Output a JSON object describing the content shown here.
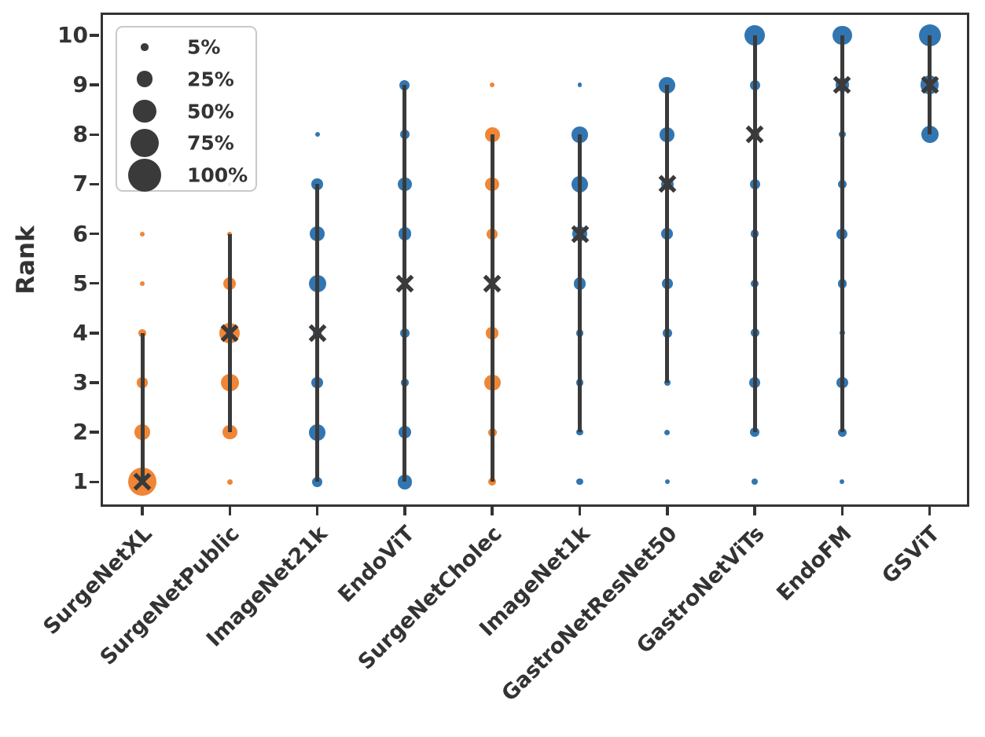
{
  "chart_data": {
    "type": "scatter",
    "title": "",
    "xlabel": "",
    "ylabel": "Rank",
    "grid": false,
    "y_ticks": [
      1,
      2,
      3,
      4,
      5,
      6,
      7,
      8,
      9,
      10
    ],
    "ylim": [
      0.5,
      10.5
    ],
    "legend": {
      "position": "upper left",
      "note": "bubble size encodes percentage of runs at that rank",
      "items": [
        {
          "label": "5%",
          "pct": 5
        },
        {
          "label": "25%",
          "pct": 25
        },
        {
          "label": "50%",
          "pct": 50
        },
        {
          "label": "75%",
          "pct": 75
        },
        {
          "label": "100%",
          "pct": 100
        }
      ]
    },
    "colors": {
      "orange": "#ef8636",
      "blue": "#3276b1",
      "marker_dark": "#3a3a3a",
      "axis": "#333333"
    },
    "series": [
      {
        "model": "SurgeNetXL",
        "color": "orange",
        "median_rank": 1,
        "line_range": [
          1,
          4
        ],
        "rank_pcts": {
          "1": 75,
          "2": 22,
          "3": 10,
          "4": 5,
          "5": 2,
          "6": 2
        }
      },
      {
        "model": "SurgeNetPublic",
        "color": "orange",
        "median_rank": 4,
        "line_range": [
          2,
          6
        ],
        "rank_pcts": {
          "1": 3,
          "2": 20,
          "3": 30,
          "4": 40,
          "5": 15,
          "6": 2,
          "7": 1
        }
      },
      {
        "model": "ImageNet21k",
        "color": "blue",
        "median_rank": 4,
        "line_range": [
          1,
          7
        ],
        "rank_pcts": {
          "1": 10,
          "2": 25,
          "3": 12,
          "4": 8,
          "5": 28,
          "6": 20,
          "7": 12,
          "8": 2
        }
      },
      {
        "model": "EndoViT",
        "color": "blue",
        "median_rank": 5,
        "line_range": [
          1,
          9
        ],
        "rank_pcts": {
          "1": 20,
          "2": 15,
          "3": 5,
          "4": 8,
          "6": 16,
          "7": 18,
          "8": 8,
          "9": 10
        }
      },
      {
        "model": "SurgeNetCholec",
        "color": "orange",
        "median_rank": 5,
        "line_range": [
          1,
          8
        ],
        "rank_pcts": {
          "1": 6,
          "2": 7,
          "3": 25,
          "4": 14,
          "6": 11,
          "7": 18,
          "8": 20,
          "9": 2
        }
      },
      {
        "model": "ImageNet1k",
        "color": "blue",
        "median_rank": 6,
        "line_range": [
          2,
          8
        ],
        "rank_pcts": {
          "1": 4,
          "2": 4,
          "3": 5,
          "4": 5,
          "5": 14,
          "6": 20,
          "7": 26,
          "8": 24,
          "9": 2
        }
      },
      {
        "model": "GastroNetResNet50",
        "color": "blue",
        "median_rank": 7,
        "line_range": [
          3,
          9
        ],
        "rank_pcts": {
          "1": 2,
          "2": 3,
          "3": 4,
          "4": 9,
          "5": 12,
          "6": 13,
          "7": 14,
          "8": 20,
          "9": 26
        }
      },
      {
        "model": "GastroNetViTs",
        "color": "blue",
        "median_rank": 8,
        "line_range": [
          2,
          10
        ],
        "rank_pcts": {
          "1": 4,
          "2": 9,
          "3": 11,
          "4": 7,
          "5": 6,
          "6": 6,
          "7": 10,
          "8": 7,
          "9": 10,
          "10": 40
        }
      },
      {
        "model": "EndoFM",
        "color": "blue",
        "median_rank": 9,
        "line_range": [
          2,
          10
        ],
        "rank_pcts": {
          "1": 2,
          "2": 7,
          "3": 12,
          "4": 3,
          "5": 8,
          "6": 11,
          "7": 7,
          "8": 4,
          "9": 18,
          "10": 35
        }
      },
      {
        "model": "GSViT",
        "color": "blue",
        "median_rank": 9,
        "line_range": [
          8,
          10
        ],
        "rank_pcts": {
          "8": 28,
          "9": 32,
          "10": 45
        }
      }
    ]
  }
}
